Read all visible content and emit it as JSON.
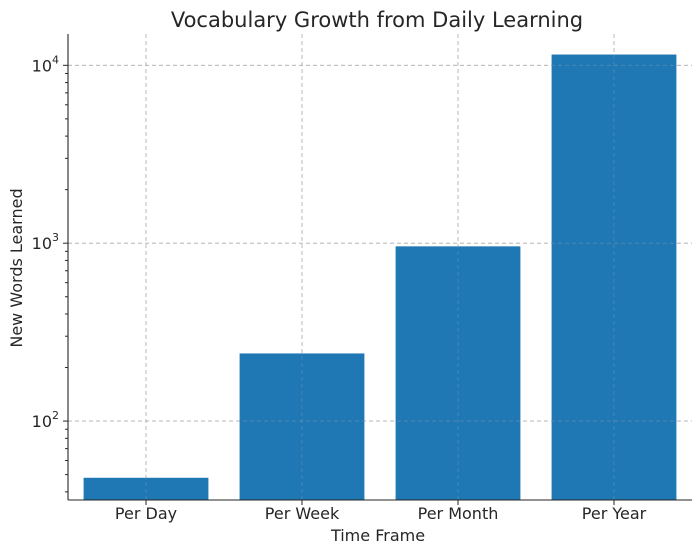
{
  "chart_data": {
    "type": "bar",
    "title": "Vocabulary Growth from Daily Learning",
    "xlabel": "Time Frame",
    "ylabel": "New Words Learned",
    "categories": [
      "Per Day",
      "Per Week",
      "Per Month",
      "Per Year"
    ],
    "values": [
      48,
      240,
      960,
      11500
    ],
    "yscale": "log",
    "ylim": [
      36,
      15000
    ],
    "yticks": [
      {
        "value": 100,
        "base": "10",
        "exp": "2"
      },
      {
        "value": 1000,
        "base": "10",
        "exp": "3"
      },
      {
        "value": 10000,
        "base": "10",
        "exp": "4"
      }
    ],
    "grid": true,
    "bar_color": "#1f77b4"
  }
}
